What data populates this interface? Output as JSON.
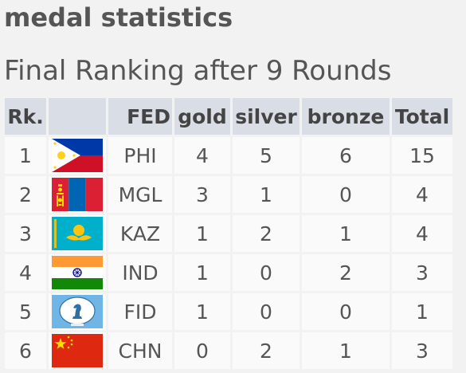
{
  "headings": {
    "title": "medal statistics",
    "subtitle": "Final Ranking after 9 Rounds"
  },
  "table": {
    "headers": {
      "rank": "Rk.",
      "flag": "",
      "fed": "FED",
      "gold": "gold",
      "silver": "silver",
      "bronze": "bronze",
      "total": "Total"
    },
    "rows": [
      {
        "rank": "1",
        "flag_icon": "philippines-flag-icon",
        "fed": "PHI",
        "gold": "4",
        "silver": "5",
        "bronze": "6",
        "total": "15"
      },
      {
        "rank": "2",
        "flag_icon": "mongolia-flag-icon",
        "fed": "MGL",
        "gold": "3",
        "silver": "1",
        "bronze": "0",
        "total": "4"
      },
      {
        "rank": "3",
        "flag_icon": "kazakhstan-flag-icon",
        "fed": "KAZ",
        "gold": "1",
        "silver": "2",
        "bronze": "1",
        "total": "4"
      },
      {
        "rank": "4",
        "flag_icon": "india-flag-icon",
        "fed": "IND",
        "gold": "1",
        "silver": "0",
        "bronze": "2",
        "total": "3"
      },
      {
        "rank": "5",
        "flag_icon": "fide-flag-icon",
        "fed": "FID",
        "gold": "1",
        "silver": "0",
        "bronze": "0",
        "total": "1"
      },
      {
        "rank": "6",
        "flag_icon": "china-flag-icon",
        "fed": "CHN",
        "gold": "0",
        "silver": "2",
        "bronze": "1",
        "total": "3"
      }
    ]
  },
  "colors": {
    "background": "#f2f2f2",
    "header_cell": "#d9dde6",
    "body_cell": "#fafafa",
    "text": "#555555"
  }
}
